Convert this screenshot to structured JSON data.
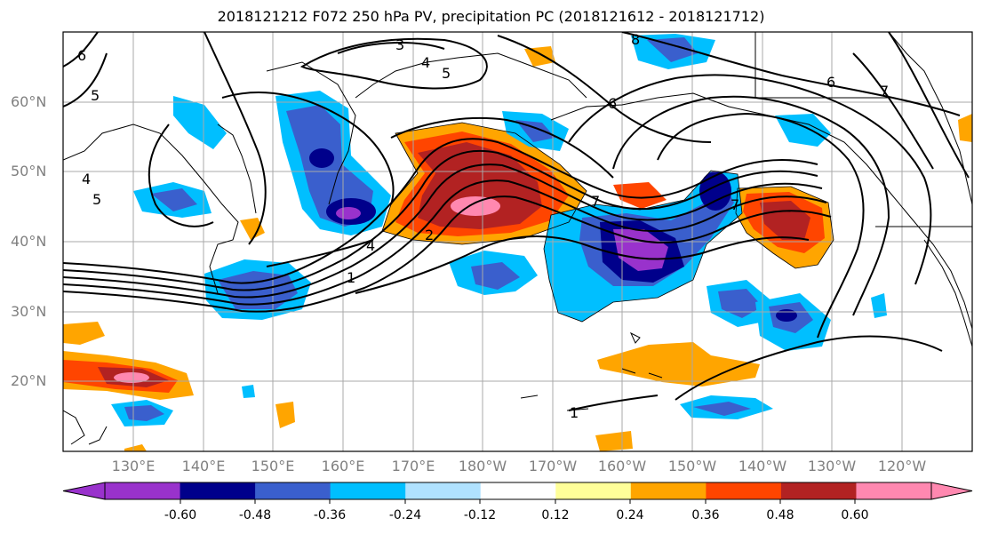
{
  "title": "2018121212 F072 250 hPa PV, precipitation PC (2018121612 - 2018121712)",
  "lat_labels": [
    "60°N",
    "50°N",
    "40°N",
    "30°N",
    "20°N"
  ],
  "lon_labels": [
    "130°E",
    "140°E",
    "150°E",
    "160°E",
    "170°E",
    "180°W",
    "170°W",
    "160°W",
    "150°W",
    "140°W",
    "130°W",
    "120°W"
  ],
  "contour_labels": [
    "3",
    "4",
    "5",
    "5",
    "6",
    "7",
    "8",
    "6",
    "7",
    "4",
    "5",
    "4",
    "2",
    "1",
    "7",
    "1",
    "6"
  ],
  "colorbar": {
    "colors": [
      "#9932cc",
      "#00008b",
      "#3a5fcd",
      "#00bfff",
      "#b0e2ff",
      "#ffffff",
      "#ffff99",
      "#ffa500",
      "#ff4500",
      "#b22222",
      "#ff88b0",
      "#ff88b0"
    ],
    "tick_labels": [
      "-0.60",
      "-0.48",
      "-0.36",
      "-0.24",
      "-0.12",
      "0.12",
      "0.24",
      "0.36",
      "0.48",
      "0.60"
    ]
  }
}
